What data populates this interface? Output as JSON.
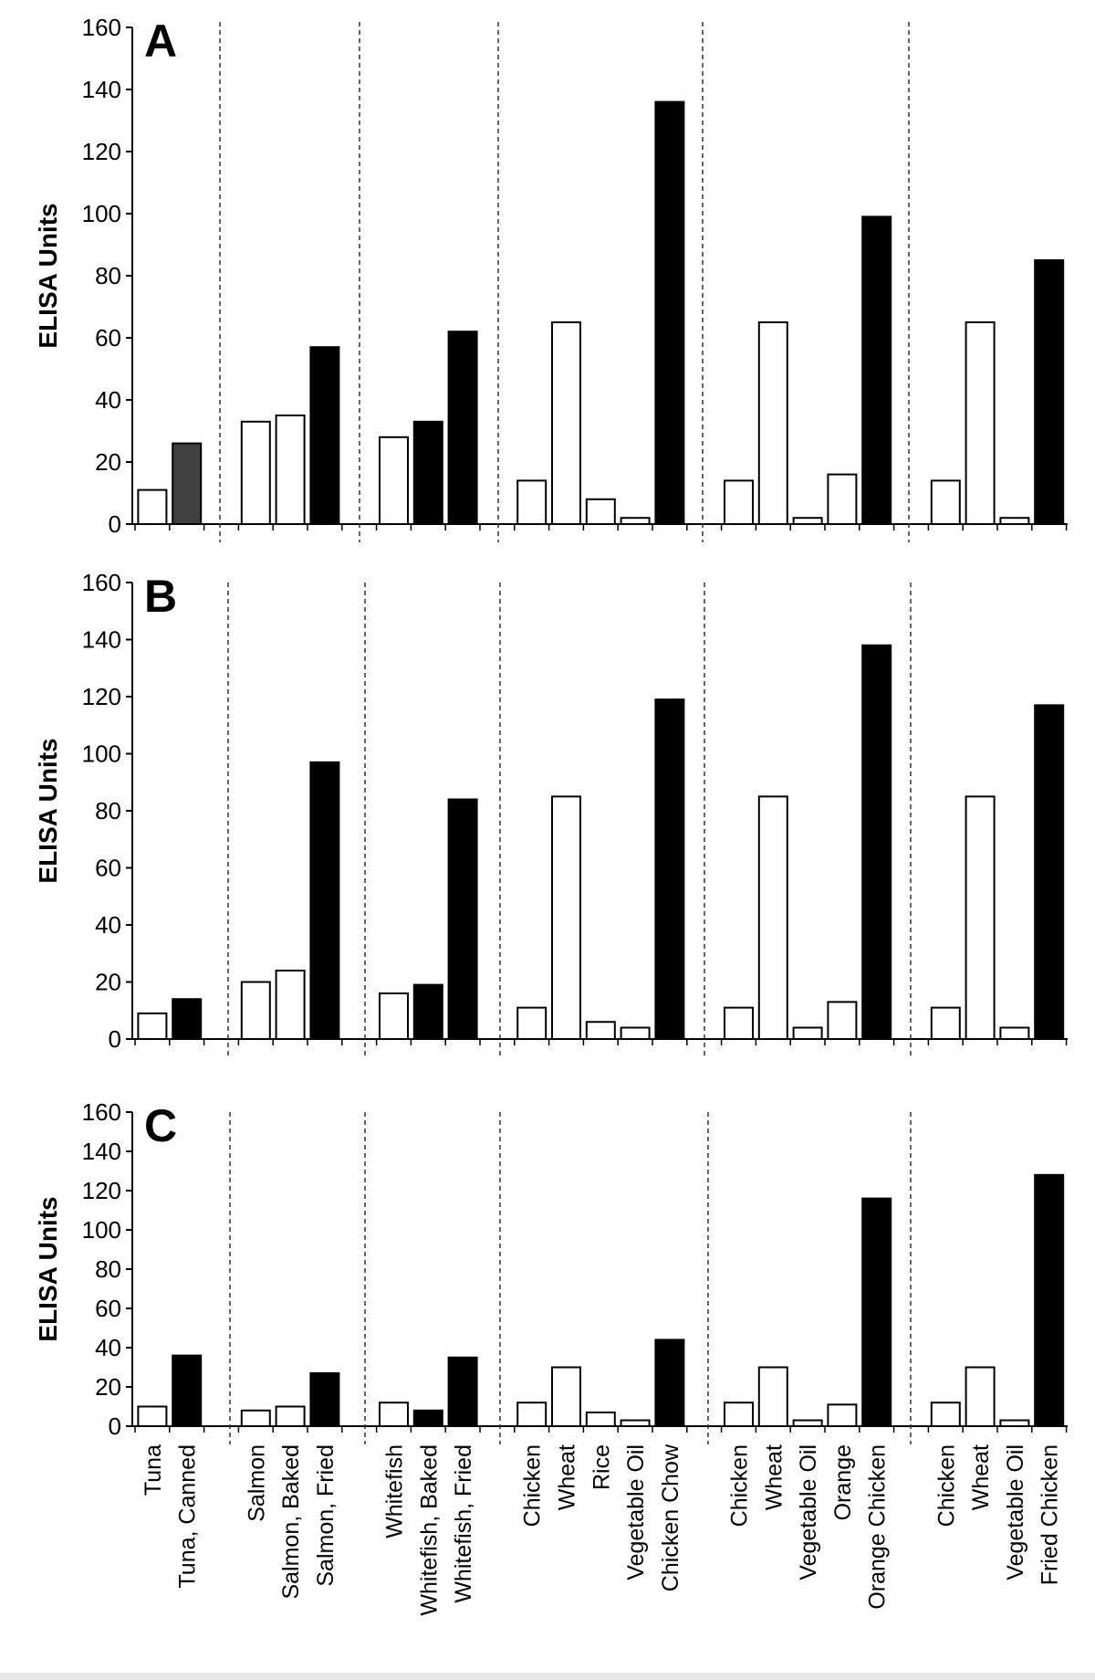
{
  "chart_data": [
    {
      "type": "bar",
      "panel_label": "A",
      "ylabel": "ELISA Units",
      "ylim": [
        0,
        160
      ],
      "yticks": [
        0,
        20,
        40,
        60,
        80,
        100,
        120,
        140,
        160
      ],
      "groups": [
        {
          "categories": [
            "Tuna",
            "Tuna, Canned"
          ],
          "values": [
            11,
            26
          ],
          "colors": [
            "#ffffff",
            "#404040"
          ]
        },
        {
          "categories": [
            "Salmon",
            "Salmon, Baked",
            "Salmon, Fried"
          ],
          "values": [
            33,
            35,
            57
          ],
          "colors": [
            "#ffffff",
            "#ffffff",
            "#000000"
          ]
        },
        {
          "categories": [
            "Whitefish",
            "Whitefish, Baked",
            "Whitefish, Fried"
          ],
          "values": [
            28,
            33,
            62
          ],
          "colors": [
            "#ffffff",
            "#000000",
            "#000000"
          ]
        },
        {
          "categories": [
            "Chicken",
            "Wheat",
            "Rice",
            "Vegetable Oil",
            "Chicken Chow"
          ],
          "values": [
            14,
            65,
            8,
            2,
            136
          ],
          "colors": [
            "#ffffff",
            "#ffffff",
            "#ffffff",
            "#ffffff",
            "#000000"
          ]
        },
        {
          "categories": [
            "Chicken",
            "Wheat",
            "Vegetable Oil",
            "Orange",
            "Orange Chicken"
          ],
          "values": [
            14,
            65,
            2,
            16,
            99
          ],
          "colors": [
            "#ffffff",
            "#ffffff",
            "#ffffff",
            "#ffffff",
            "#000000"
          ]
        },
        {
          "categories": [
            "Chicken",
            "Wheat",
            "Vegetable Oil",
            "Fried Chicken"
          ],
          "values": [
            14,
            65,
            2,
            85
          ],
          "colors": [
            "#ffffff",
            "#ffffff",
            "#ffffff",
            "#000000"
          ]
        }
      ]
    },
    {
      "type": "bar",
      "panel_label": "B",
      "ylabel": "ELISA Units",
      "ylim": [
        0,
        160
      ],
      "yticks": [
        0,
        20,
        40,
        60,
        80,
        100,
        120,
        140,
        160
      ],
      "groups": [
        {
          "categories": [
            "Tuna",
            "Tuna, Canned"
          ],
          "values": [
            9,
            14
          ],
          "colors": [
            "#ffffff",
            "#000000"
          ]
        },
        {
          "categories": [
            "Salmon",
            "Salmon, Baked",
            "Salmon, Fried"
          ],
          "values": [
            20,
            24,
            97
          ],
          "colors": [
            "#ffffff",
            "#ffffff",
            "#000000"
          ]
        },
        {
          "categories": [
            "Whitefish",
            "Whitefish, Baked",
            "Whitefish, Fried"
          ],
          "values": [
            16,
            19,
            84
          ],
          "colors": [
            "#ffffff",
            "#000000",
            "#000000"
          ]
        },
        {
          "categories": [
            "Chicken",
            "Wheat",
            "Rice",
            "Vegetable Oil",
            "Chicken Chow"
          ],
          "values": [
            11,
            85,
            6,
            4,
            119
          ],
          "colors": [
            "#ffffff",
            "#ffffff",
            "#ffffff",
            "#ffffff",
            "#000000"
          ]
        },
        {
          "categories": [
            "Chicken",
            "Wheat",
            "Vegetable Oil",
            "Orange",
            "Orange Chicken"
          ],
          "values": [
            11,
            85,
            4,
            13,
            138
          ],
          "colors": [
            "#ffffff",
            "#ffffff",
            "#ffffff",
            "#ffffff",
            "#000000"
          ]
        },
        {
          "categories": [
            "Chicken",
            "Wheat",
            "Vegetable Oil",
            "Fried Chicken"
          ],
          "values": [
            11,
            85,
            4,
            117
          ],
          "colors": [
            "#ffffff",
            "#ffffff",
            "#ffffff",
            "#000000"
          ]
        }
      ]
    },
    {
      "type": "bar",
      "panel_label": "C",
      "ylabel": "ELISA Units",
      "ylim": [
        0,
        160
      ],
      "yticks": [
        0,
        20,
        40,
        60,
        80,
        100,
        120,
        140,
        160
      ],
      "groups": [
        {
          "categories": [
            "Tuna",
            "Tuna, Canned"
          ],
          "values": [
            10,
            36
          ],
          "colors": [
            "#ffffff",
            "#000000"
          ]
        },
        {
          "categories": [
            "Salmon",
            "Salmon, Baked",
            "Salmon, Fried"
          ],
          "values": [
            8,
            10,
            27
          ],
          "colors": [
            "#ffffff",
            "#ffffff",
            "#000000"
          ]
        },
        {
          "categories": [
            "Whitefish",
            "Whitefish, Baked",
            "Whitefish, Fried"
          ],
          "values": [
            12,
            8,
            35
          ],
          "colors": [
            "#ffffff",
            "#000000",
            "#000000"
          ]
        },
        {
          "categories": [
            "Chicken",
            "Wheat",
            "Rice",
            "Vegetable Oil",
            "Chicken Chow"
          ],
          "values": [
            12,
            30,
            7,
            3,
            44
          ],
          "colors": [
            "#ffffff",
            "#ffffff",
            "#ffffff",
            "#ffffff",
            "#000000"
          ]
        },
        {
          "categories": [
            "Chicken",
            "Wheat",
            "Vegetable Oil",
            "Orange",
            "Orange Chicken"
          ],
          "values": [
            12,
            30,
            3,
            11,
            116
          ],
          "colors": [
            "#ffffff",
            "#ffffff",
            "#ffffff",
            "#ffffff",
            "#000000"
          ]
        },
        {
          "categories": [
            "Chicken",
            "Wheat",
            "Vegetable Oil",
            "Fried Chicken"
          ],
          "values": [
            12,
            30,
            3,
            128
          ],
          "colors": [
            "#ffffff",
            "#ffffff",
            "#ffffff",
            "#000000"
          ]
        }
      ]
    }
  ]
}
